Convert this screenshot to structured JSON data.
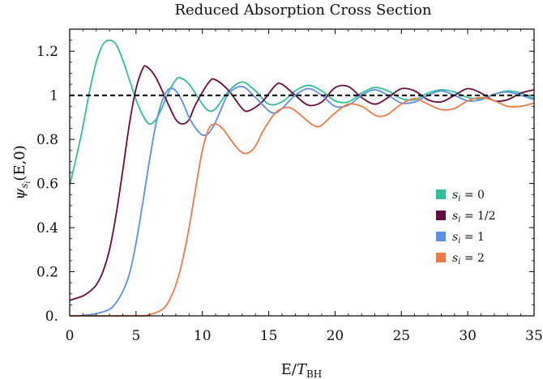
{
  "chart_data": {
    "type": "line",
    "title": "Reduced Absorption Cross Section",
    "xlabel": "E/T_BH",
    "xlabel_main": "E/",
    "xlabel_var": "T",
    "xlabel_sub": "BH",
    "ylabel": "ψ_si(E,0)",
    "ylabel_psi": "ψ",
    "ylabel_sub": "s",
    "ylabel_subsub": "i",
    "ylabel_rest": "(E,0)",
    "xlim": [
      0,
      35
    ],
    "ylim": [
      0,
      1.3
    ],
    "x_ticks": [
      0,
      5,
      10,
      15,
      20,
      25,
      30,
      35
    ],
    "x_tick_labels": [
      "0",
      "5",
      "10",
      "15",
      "20",
      "25",
      "30",
      "35"
    ],
    "y_ticks": [
      0,
      0.2,
      0.4,
      0.6,
      0.8,
      1.0,
      1.2
    ],
    "y_tick_labels": [
      "0.",
      "0.2",
      "0.4",
      "0.6",
      "0.8",
      "1",
      "1.2"
    ],
    "reference_line": {
      "y": 1.0,
      "style": "dashed",
      "color": "#000000"
    },
    "legend_position": "center-right",
    "series": [
      {
        "name": "s_i = 0",
        "legend_var": "s",
        "legend_sub": "i",
        "legend_val": " = 0",
        "color": "#2ebf9b",
        "points": [
          [
            0,
            0.59
          ],
          [
            0.5,
            0.72
          ],
          [
            1,
            0.86
          ],
          [
            1.5,
            1.02
          ],
          [
            2,
            1.15
          ],
          [
            2.5,
            1.23
          ],
          [
            3,
            1.25
          ],
          [
            3.5,
            1.23
          ],
          [
            4,
            1.16
          ],
          [
            4.5,
            1.07
          ],
          [
            5,
            0.98
          ],
          [
            5.5,
            0.91
          ],
          [
            6,
            0.87
          ],
          [
            6.5,
            0.89
          ],
          [
            7,
            0.95
          ],
          [
            7.5,
            1.02
          ],
          [
            8,
            1.07
          ],
          [
            8.3,
            1.08
          ],
          [
            9,
            1.05
          ],
          [
            10,
            0.96
          ],
          [
            10.5,
            0.93
          ],
          [
            11,
            0.94
          ],
          [
            12,
            1.02
          ],
          [
            13,
            1.06
          ],
          [
            14,
            1.02
          ],
          [
            15,
            0.96
          ],
          [
            16,
            0.97
          ],
          [
            17,
            1.02
          ],
          [
            18,
            1.045
          ],
          [
            19,
            1.02
          ],
          [
            20,
            0.975
          ],
          [
            21,
            0.97
          ],
          [
            22,
            1.01
          ],
          [
            23,
            1.035
          ],
          [
            24,
            1.02
          ],
          [
            25,
            0.985
          ],
          [
            26,
            0.98
          ],
          [
            27,
            1.01
          ],
          [
            28,
            1.025
          ],
          [
            29,
            1.015
          ],
          [
            30,
            0.99
          ],
          [
            31,
            0.985
          ],
          [
            32,
            1.005
          ],
          [
            33,
            1.02
          ],
          [
            34,
            1.01
          ],
          [
            35,
            0.985
          ]
        ]
      },
      {
        "name": "s_i = 1/2",
        "legend_var": "s",
        "legend_sub": "i",
        "legend_val": " = 1/2",
        "color": "#6b0a3e",
        "points": [
          [
            0,
            0.07
          ],
          [
            0.5,
            0.08
          ],
          [
            1,
            0.09
          ],
          [
            1.5,
            0.11
          ],
          [
            2,
            0.14
          ],
          [
            2.5,
            0.2
          ],
          [
            3,
            0.3
          ],
          [
            3.5,
            0.46
          ],
          [
            4,
            0.66
          ],
          [
            4.5,
            0.87
          ],
          [
            5,
            1.03
          ],
          [
            5.5,
            1.12
          ],
          [
            5.8,
            1.13
          ],
          [
            6.5,
            1.08
          ],
          [
            7.5,
            0.95
          ],
          [
            8,
            0.89
          ],
          [
            8.5,
            0.87
          ],
          [
            9,
            0.89
          ],
          [
            9.5,
            0.96
          ],
          [
            10.5,
            1.06
          ],
          [
            11,
            1.07
          ],
          [
            12,
            1.02
          ],
          [
            13,
            0.94
          ],
          [
            13.5,
            0.93
          ],
          [
            14.5,
            0.97
          ],
          [
            15.5,
            1.045
          ],
          [
            16,
            1.05
          ],
          [
            17,
            1.0
          ],
          [
            18,
            0.955
          ],
          [
            19,
            0.97
          ],
          [
            20,
            1.035
          ],
          [
            21,
            1.04
          ],
          [
            22,
            0.99
          ],
          [
            23,
            0.96
          ],
          [
            24,
            0.99
          ],
          [
            25,
            1.03
          ],
          [
            26,
            1.02
          ],
          [
            27,
            0.98
          ],
          [
            28,
            0.97
          ],
          [
            29,
            1.0
          ],
          [
            30,
            1.03
          ],
          [
            31,
            1.01
          ],
          [
            32,
            0.975
          ],
          [
            33,
            0.98
          ],
          [
            34,
            1.01
          ],
          [
            35,
            1.025
          ]
        ]
      },
      {
        "name": "s_i = 1",
        "legend_var": "s",
        "legend_sub": "i",
        "legend_val": " = 1",
        "color": "#5b8fea",
        "points": [
          [
            0,
            0.0
          ],
          [
            1,
            0.002
          ],
          [
            2,
            0.01
          ],
          [
            3,
            0.03
          ],
          [
            3.5,
            0.06
          ],
          [
            4,
            0.11
          ],
          [
            4.5,
            0.19
          ],
          [
            5,
            0.33
          ],
          [
            5.5,
            0.51
          ],
          [
            6,
            0.7
          ],
          [
            6.5,
            0.87
          ],
          [
            7,
            0.98
          ],
          [
            7.5,
            1.03
          ],
          [
            8,
            1.02
          ],
          [
            8.5,
            0.97
          ],
          [
            9,
            0.9
          ],
          [
            9.5,
            0.85
          ],
          [
            10,
            0.82
          ],
          [
            10.5,
            0.83
          ],
          [
            11,
            0.88
          ],
          [
            11.5,
            0.95
          ],
          [
            12,
            1.01
          ],
          [
            13,
            1.04
          ],
          [
            14,
            0.99
          ],
          [
            15,
            0.93
          ],
          [
            15.5,
            0.92
          ],
          [
            16,
            0.94
          ],
          [
            17,
            1.0
          ],
          [
            18,
            1.03
          ],
          [
            19,
            1.0
          ],
          [
            20,
            0.95
          ],
          [
            21,
            0.955
          ],
          [
            22,
            1.0
          ],
          [
            23,
            1.025
          ],
          [
            24,
            1.0
          ],
          [
            25,
            0.965
          ],
          [
            26,
            0.97
          ],
          [
            27,
            1.0
          ],
          [
            28,
            1.02
          ],
          [
            29,
            1.0
          ],
          [
            30,
            0.975
          ],
          [
            31,
            0.98
          ],
          [
            32,
            1.005
          ],
          [
            33,
            1.015
          ],
          [
            34,
            1.0
          ],
          [
            35,
            0.98
          ]
        ]
      },
      {
        "name": "s_i = 2",
        "legend_var": "s",
        "legend_sub": "i",
        "legend_val": " = 2",
        "color": "#f07a45",
        "points": [
          [
            0,
            0.0
          ],
          [
            5,
            0.0
          ],
          [
            6,
            0.005
          ],
          [
            7,
            0.03
          ],
          [
            7.5,
            0.07
          ],
          [
            8,
            0.14
          ],
          [
            8.5,
            0.25
          ],
          [
            9,
            0.4
          ],
          [
            9.5,
            0.58
          ],
          [
            10,
            0.75
          ],
          [
            10.5,
            0.85
          ],
          [
            11,
            0.87
          ],
          [
            11.5,
            0.85
          ],
          [
            12,
            0.81
          ],
          [
            12.5,
            0.77
          ],
          [
            13,
            0.74
          ],
          [
            13.5,
            0.74
          ],
          [
            14,
            0.77
          ],
          [
            14.5,
            0.83
          ],
          [
            15,
            0.88
          ],
          [
            15.5,
            0.92
          ],
          [
            16,
            0.94
          ],
          [
            16.5,
            0.945
          ],
          [
            17,
            0.93
          ],
          [
            18,
            0.88
          ],
          [
            18.5,
            0.86
          ],
          [
            19,
            0.865
          ],
          [
            20,
            0.92
          ],
          [
            21,
            0.96
          ],
          [
            22,
            0.95
          ],
          [
            23,
            0.91
          ],
          [
            23.5,
            0.905
          ],
          [
            24,
            0.915
          ],
          [
            25,
            0.96
          ],
          [
            26,
            0.985
          ],
          [
            27,
            0.96
          ],
          [
            28,
            0.935
          ],
          [
            29,
            0.94
          ],
          [
            30,
            0.975
          ],
          [
            31,
            0.99
          ],
          [
            32,
            0.975
          ],
          [
            33,
            0.95
          ],
          [
            34,
            0.95
          ],
          [
            35,
            0.965
          ]
        ]
      }
    ]
  }
}
